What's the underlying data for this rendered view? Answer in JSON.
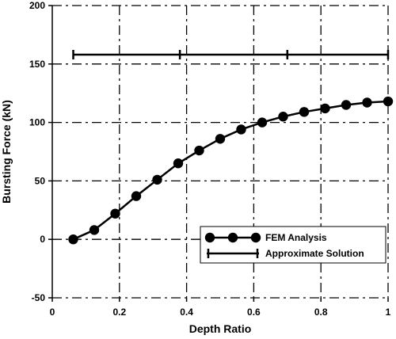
{
  "chart_data": {
    "type": "line",
    "xlabel": "Depth Ratio",
    "ylabel": "Bursting Force (kN)",
    "xlim": [
      0,
      1
    ],
    "ylim": [
      -50,
      200
    ],
    "xticks": [
      0,
      0.2,
      0.4,
      0.6,
      0.8,
      1
    ],
    "xtick_labels": [
      "0",
      "0.2",
      "0.4",
      "0.6",
      "0.8",
      "1"
    ],
    "yticks": [
      -50,
      0,
      50,
      100,
      150,
      200
    ],
    "ytick_labels": [
      "-50",
      "0",
      "50",
      "100",
      "150",
      "200"
    ],
    "grid": true,
    "legend_position": "bottom-right",
    "series": [
      {
        "name": "FEM Analysis",
        "marker": "circle",
        "color": "#000000",
        "x": [
          0.0625,
          0.125,
          0.1875,
          0.25,
          0.3125,
          0.375,
          0.4375,
          0.5,
          0.5625,
          0.625,
          0.6875,
          0.75,
          0.8125,
          0.875,
          0.9375,
          1.0
        ],
        "y": [
          0,
          8,
          22,
          37,
          51,
          65,
          76,
          86,
          94,
          100,
          105,
          109,
          112,
          115,
          117,
          118
        ]
      },
      {
        "name": "Approximate Solution",
        "marker": "plus",
        "color": "#000000",
        "x": [
          0.0625,
          0.38,
          0.7,
          1.0
        ],
        "y": [
          158,
          158,
          158,
          158
        ]
      }
    ]
  }
}
